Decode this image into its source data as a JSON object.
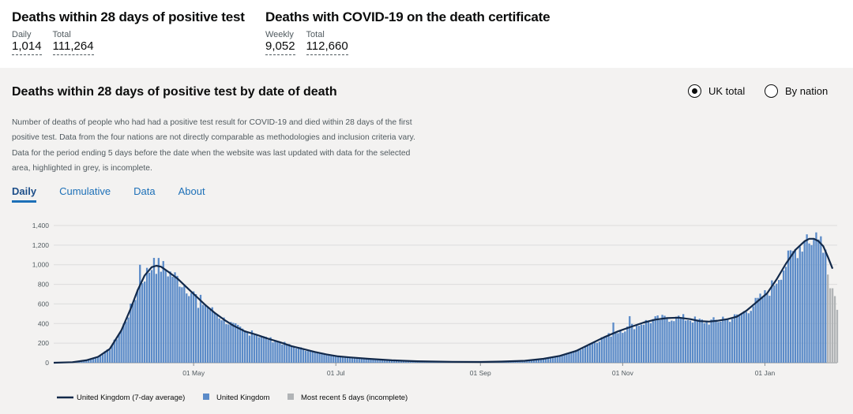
{
  "headlines": [
    {
      "title": "Deaths within 28 days of positive test",
      "metrics": [
        {
          "label": "Daily",
          "value": "1,014"
        },
        {
          "label": "Total",
          "value": "111,264"
        }
      ]
    },
    {
      "title": "Deaths with COVID-19 on the death certificate",
      "metrics": [
        {
          "label": "Weekly",
          "value": "9,052"
        },
        {
          "label": "Total",
          "value": "112,660"
        }
      ]
    }
  ],
  "card": {
    "title": "Deaths within 28 days of positive test by date of death",
    "radio_options": [
      {
        "label": "UK total",
        "checked": true
      },
      {
        "label": "By nation",
        "checked": false
      }
    ],
    "description": "Number of deaths of people who had had a positive test result for COVID-19 and died within 28 days of the first positive test. Data from the four nations are not directly comparable as methodologies and inclusion criteria vary. Data for the period ending 5 days before the date when the website was last updated with data for the selected area, highlighted in grey, is incomplete.",
    "tabs": [
      {
        "label": "Daily",
        "active": true
      },
      {
        "label": "Cumulative",
        "active": false
      },
      {
        "label": "Data",
        "active": false
      },
      {
        "label": "About",
        "active": false
      }
    ]
  },
  "chart_data": {
    "type": "bar",
    "x_axis": {
      "tick_labels": [
        {
          "date": "2020-05-01",
          "label": "01 May"
        },
        {
          "date": "2020-07-01",
          "label": "01 Jul"
        },
        {
          "date": "2020-09-01",
          "label": "01 Sep"
        },
        {
          "date": "2020-11-01",
          "label": "01 Nov"
        },
        {
          "date": "2021-01-01",
          "label": "01 Jan"
        }
      ],
      "range": [
        "2020-03-02",
        "2021-02-01"
      ]
    },
    "y_axis": {
      "ylim": [
        0,
        1400
      ],
      "ticks": [
        0,
        200,
        400,
        600,
        800,
        1000,
        1200,
        1400
      ],
      "tick_labels": [
        "0",
        "200",
        "400",
        "600",
        "800",
        "1,000",
        "1,200",
        "1,400"
      ],
      "grid": true
    },
    "series": [
      {
        "name": "United Kingdom (7-day average)",
        "kind": "line",
        "color": "#12294a",
        "points": [
          [
            "2020-03-02",
            0
          ],
          [
            "2020-03-10",
            6
          ],
          [
            "2020-03-16",
            25
          ],
          [
            "2020-03-21",
            60
          ],
          [
            "2020-03-26",
            140
          ],
          [
            "2020-03-31",
            330
          ],
          [
            "2020-04-04",
            550
          ],
          [
            "2020-04-07",
            740
          ],
          [
            "2020-04-10",
            890
          ],
          [
            "2020-04-13",
            975
          ],
          [
            "2020-04-15",
            990
          ],
          [
            "2020-04-17",
            980
          ],
          [
            "2020-04-20",
            930
          ],
          [
            "2020-04-24",
            860
          ],
          [
            "2020-04-28",
            770
          ],
          [
            "2020-05-02",
            680
          ],
          [
            "2020-05-06",
            590
          ],
          [
            "2020-05-10",
            510
          ],
          [
            "2020-05-14",
            440
          ],
          [
            "2020-05-18",
            380
          ],
          [
            "2020-05-23",
            320
          ],
          [
            "2020-05-28",
            285
          ],
          [
            "2020-06-02",
            245
          ],
          [
            "2020-06-07",
            210
          ],
          [
            "2020-06-12",
            170
          ],
          [
            "2020-06-17",
            140
          ],
          [
            "2020-06-22",
            110
          ],
          [
            "2020-06-27",
            85
          ],
          [
            "2020-07-02",
            65
          ],
          [
            "2020-07-07",
            55
          ],
          [
            "2020-07-15",
            40
          ],
          [
            "2020-07-25",
            25
          ],
          [
            "2020-08-05",
            15
          ],
          [
            "2020-08-20",
            10
          ],
          [
            "2020-09-01",
            8
          ],
          [
            "2020-09-10",
            12
          ],
          [
            "2020-09-20",
            20
          ],
          [
            "2020-09-28",
            40
          ],
          [
            "2020-10-05",
            70
          ],
          [
            "2020-10-12",
            120
          ],
          [
            "2020-10-18",
            190
          ],
          [
            "2020-10-24",
            260
          ],
          [
            "2020-10-30",
            320
          ],
          [
            "2020-11-05",
            370
          ],
          [
            "2020-11-10",
            410
          ],
          [
            "2020-11-15",
            440
          ],
          [
            "2020-11-20",
            455
          ],
          [
            "2020-11-25",
            460
          ],
          [
            "2020-11-30",
            445
          ],
          [
            "2020-12-04",
            425
          ],
          [
            "2020-12-08",
            420
          ],
          [
            "2020-12-12",
            430
          ],
          [
            "2020-12-16",
            445
          ],
          [
            "2020-12-20",
            470
          ],
          [
            "2020-12-24",
            530
          ],
          [
            "2020-12-28",
            610
          ],
          [
            "2021-01-02",
            710
          ],
          [
            "2021-01-06",
            850
          ],
          [
            "2021-01-10",
            1010
          ],
          [
            "2021-01-14",
            1150
          ],
          [
            "2021-01-18",
            1240
          ],
          [
            "2021-01-20",
            1265
          ],
          [
            "2021-01-22",
            1265
          ],
          [
            "2021-01-24",
            1240
          ],
          [
            "2021-01-26",
            1190
          ],
          [
            "2021-01-28",
            1080
          ],
          [
            "2021-01-30",
            960
          ]
        ]
      },
      {
        "name": "United Kingdom",
        "kind": "bar",
        "color": "#5b8bc8",
        "values": "daily deaths, estimated from the 7-day average curve and bar heights (Mar 2020 to Jan 2021)",
        "spikes": [
          [
            "2020-04-14",
            1070
          ],
          [
            "2020-04-08",
            1000
          ],
          [
            "2020-05-03",
            560
          ],
          [
            "2020-05-26",
            330
          ],
          [
            "2020-10-28",
            410
          ],
          [
            "2020-11-04",
            475
          ],
          [
            "2020-11-24",
            470
          ],
          [
            "2020-12-14",
            470
          ],
          [
            "2021-01-19",
            1310
          ],
          [
            "2021-01-23",
            1330
          ],
          [
            "2021-01-25",
            1290
          ]
        ]
      },
      {
        "name": "Most recent 5 days (incomplete)",
        "kind": "bar",
        "color": "#b1b4b6",
        "points": [
          [
            "2021-01-28",
            900
          ],
          [
            "2021-01-29",
            760
          ],
          [
            "2021-01-30",
            760
          ],
          [
            "2021-01-31",
            680
          ],
          [
            "2021-02-01",
            540
          ]
        ]
      }
    ]
  }
}
